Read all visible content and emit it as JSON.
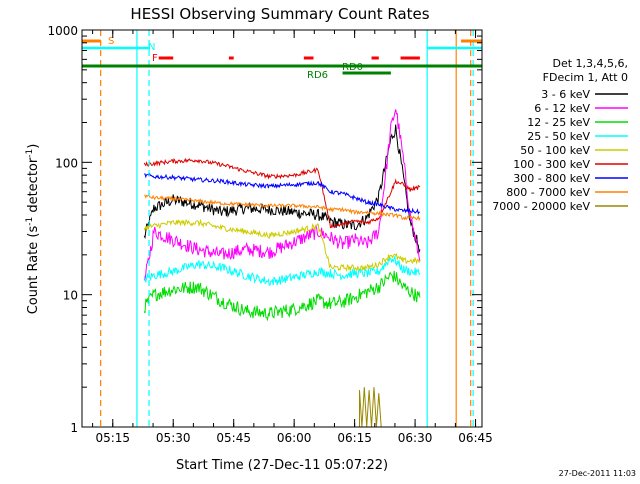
{
  "chart_data": {
    "type": "line",
    "title": "HESSI Observing Summary Count Rates",
    "xlabel": "Start Time (27-Dec-11 05:07:22)",
    "ylabel_main": "Count Rate (s",
    "ylabel_sup1": "-1",
    "ylabel_mid": " detector",
    "ylabel_sup2": "-1",
    "ylabel_end": ")",
    "y_log": true,
    "xlim": [
      5.1228,
      6.7767
    ],
    "ylim": [
      1,
      1000
    ],
    "xticks": [
      {
        "v": 5.25,
        "label": "05:15"
      },
      {
        "v": 5.5,
        "label": "05:30"
      },
      {
        "v": 5.75,
        "label": "05:45"
      },
      {
        "v": 6.0,
        "label": "06:00"
      },
      {
        "v": 6.25,
        "label": "06:15"
      },
      {
        "v": 6.5,
        "label": "06:30"
      },
      {
        "v": 6.75,
        "label": "06:45"
      }
    ],
    "yticks": [
      {
        "v": 1,
        "label": "1"
      },
      {
        "v": 10,
        "label": "10"
      },
      {
        "v": 100,
        "label": "100"
      },
      {
        "v": 1000,
        "label": "1000"
      }
    ],
    "legend_header": [
      "Det 1,3,4,5,6,",
      "FDecim 1, Att 0"
    ],
    "series": [
      {
        "name": "3 - 6 keV",
        "color": "#000000",
        "values": [
          [
            5.38,
            27
          ],
          [
            5.42,
            45
          ],
          [
            5.5,
            52
          ],
          [
            5.6,
            48
          ],
          [
            5.7,
            42
          ],
          [
            5.8,
            45
          ],
          [
            5.9,
            44
          ],
          [
            6.0,
            42
          ],
          [
            6.1,
            40
          ],
          [
            6.15,
            36
          ],
          [
            6.2,
            34
          ],
          [
            6.25,
            33
          ],
          [
            6.3,
            38
          ],
          [
            6.35,
            55
          ],
          [
            6.4,
            150
          ],
          [
            6.42,
            180
          ],
          [
            6.45,
            80
          ],
          [
            6.48,
            35
          ],
          [
            6.52,
            22
          ]
        ]
      },
      {
        "name": "6 - 12 keV",
        "color": "#ff00ff",
        "values": [
          [
            5.38,
            12
          ],
          [
            5.42,
            30
          ],
          [
            5.5,
            26
          ],
          [
            5.6,
            22
          ],
          [
            5.7,
            20
          ],
          [
            5.8,
            22
          ],
          [
            5.9,
            21
          ],
          [
            6.0,
            25
          ],
          [
            6.1,
            30
          ],
          [
            6.15,
            27
          ],
          [
            6.2,
            24
          ],
          [
            6.25,
            26
          ],
          [
            6.3,
            24
          ],
          [
            6.35,
            30
          ],
          [
            6.4,
            180
          ],
          [
            6.42,
            260
          ],
          [
            6.45,
            110
          ],
          [
            6.48,
            40
          ],
          [
            6.52,
            18
          ]
        ]
      },
      {
        "name": "12 - 25 keV",
        "color": "#00dd00",
        "values": [
          [
            5.38,
            8
          ],
          [
            5.42,
            10
          ],
          [
            5.5,
            11
          ],
          [
            5.6,
            11.5
          ],
          [
            5.7,
            9
          ],
          [
            5.8,
            7.5
          ],
          [
            5.9,
            7.2
          ],
          [
            6.0,
            7.8
          ],
          [
            6.1,
            9
          ],
          [
            6.15,
            8.5
          ],
          [
            6.2,
            8.8
          ],
          [
            6.25,
            9.5
          ],
          [
            6.3,
            10.5
          ],
          [
            6.35,
            11.5
          ],
          [
            6.4,
            14
          ],
          [
            6.42,
            13.5
          ],
          [
            6.45,
            11.5
          ],
          [
            6.48,
            10.5
          ],
          [
            6.52,
            9.5
          ]
        ]
      },
      {
        "name": "25 - 50 keV",
        "color": "#00ffff",
        "values": [
          [
            5.38,
            13
          ],
          [
            5.42,
            14
          ],
          [
            5.5,
            15
          ],
          [
            5.6,
            17
          ],
          [
            5.7,
            16
          ],
          [
            5.8,
            14
          ],
          [
            5.9,
            12.5
          ],
          [
            6.0,
            13.5
          ],
          [
            6.1,
            15
          ],
          [
            6.15,
            14.5
          ],
          [
            6.2,
            14
          ],
          [
            6.25,
            14.5
          ],
          [
            6.3,
            14.5
          ],
          [
            6.35,
            15
          ],
          [
            6.4,
            19
          ],
          [
            6.42,
            18
          ],
          [
            6.45,
            15.5
          ],
          [
            6.48,
            15
          ],
          [
            6.52,
            14.5
          ]
        ]
      },
      {
        "name": "50 - 100 keV",
        "color": "#cccc00",
        "values": [
          [
            5.38,
            32
          ],
          [
            5.42,
            33
          ],
          [
            5.5,
            35
          ],
          [
            5.6,
            35
          ],
          [
            5.7,
            32
          ],
          [
            5.8,
            30
          ],
          [
            5.9,
            28
          ],
          [
            6.0,
            30
          ],
          [
            6.1,
            33
          ],
          [
            6.15,
            16
          ],
          [
            6.2,
            16
          ],
          [
            6.25,
            16
          ],
          [
            6.3,
            16
          ],
          [
            6.35,
            17
          ],
          [
            6.4,
            20
          ],
          [
            6.42,
            19.5
          ],
          [
            6.45,
            18
          ],
          [
            6.48,
            18
          ],
          [
            6.52,
            18
          ]
        ]
      },
      {
        "name": "100 - 300 keV",
        "color": "#dd0000",
        "values": [
          [
            5.38,
            96
          ],
          [
            5.42,
            98
          ],
          [
            5.5,
            102
          ],
          [
            5.6,
            104
          ],
          [
            5.7,
            96
          ],
          [
            5.8,
            86
          ],
          [
            5.9,
            78
          ],
          [
            6.0,
            80
          ],
          [
            6.1,
            88
          ],
          [
            6.15,
            33
          ],
          [
            6.2,
            34
          ],
          [
            6.25,
            36
          ],
          [
            6.3,
            35
          ],
          [
            6.35,
            38
          ],
          [
            6.4,
            60
          ],
          [
            6.42,
            72
          ],
          [
            6.45,
            68
          ],
          [
            6.48,
            62
          ],
          [
            6.52,
            65
          ]
        ]
      },
      {
        "name": "300 - 800 keV",
        "color": "#0000ff",
        "values": [
          [
            5.38,
            80
          ],
          [
            5.42,
            78
          ],
          [
            5.5,
            77
          ],
          [
            5.6,
            74
          ],
          [
            5.7,
            72
          ],
          [
            5.8,
            68
          ],
          [
            5.9,
            66
          ],
          [
            6.0,
            68
          ],
          [
            6.1,
            70
          ],
          [
            6.15,
            60
          ],
          [
            6.2,
            58
          ],
          [
            6.25,
            54
          ],
          [
            6.3,
            50
          ],
          [
            6.35,
            48
          ],
          [
            6.4,
            45
          ],
          [
            6.42,
            44
          ],
          [
            6.45,
            43
          ],
          [
            6.48,
            43
          ],
          [
            6.52,
            42
          ]
        ]
      },
      {
        "name": "800 - 7000 keV",
        "color": "#ff8000",
        "values": [
          [
            5.38,
            56
          ],
          [
            5.42,
            54
          ],
          [
            5.5,
            53
          ],
          [
            5.6,
            51
          ],
          [
            5.7,
            49
          ],
          [
            5.8,
            48
          ],
          [
            5.9,
            47
          ],
          [
            6.0,
            47
          ],
          [
            6.1,
            46
          ],
          [
            6.15,
            44
          ],
          [
            6.2,
            44
          ],
          [
            6.25,
            42
          ],
          [
            6.3,
            42
          ],
          [
            6.35,
            41
          ],
          [
            6.4,
            40
          ],
          [
            6.42,
            40
          ],
          [
            6.45,
            38
          ],
          [
            6.48,
            38
          ],
          [
            6.52,
            38
          ]
        ]
      },
      {
        "name": "7000 - 20000 keV",
        "color": "#998800",
        "values": [
          [
            6.27,
            1
          ],
          [
            6.27,
            1.9
          ],
          [
            6.28,
            1
          ],
          [
            6.29,
            2
          ],
          [
            6.3,
            1
          ],
          [
            6.31,
            1.9
          ],
          [
            6.32,
            1
          ],
          [
            6.33,
            2
          ],
          [
            6.34,
            1
          ],
          [
            6.35,
            1.8
          ],
          [
            6.36,
            1
          ]
        ]
      }
    ],
    "annotations": [
      {
        "label": "S",
        "color": "#ff8000"
      },
      {
        "label": "N",
        "color": "#00ffff"
      },
      {
        "label": "F",
        "color": "#ff0000"
      },
      {
        "label": "RD0",
        "color": "#008000"
      },
      {
        "label": "RD6",
        "color": "#008000"
      }
    ],
    "vlines": [
      {
        "v": 5.2,
        "color": "#ff8000",
        "dash": true
      },
      {
        "v": 5.35,
        "color": "#00ffff",
        "dash": false
      },
      {
        "v": 5.4,
        "color": "#00ffff",
        "dash": true
      },
      {
        "v": 6.55,
        "color": "#00ffff",
        "dash": false
      },
      {
        "v": 6.67,
        "color": "#ff8000",
        "dash": false
      },
      {
        "v": 6.73,
        "color": "#ff8000",
        "dash": true
      },
      {
        "v": 6.74,
        "color": "#00ffff",
        "dash": true
      }
    ]
  },
  "footer_date": "27-Dec-2011 11:03"
}
